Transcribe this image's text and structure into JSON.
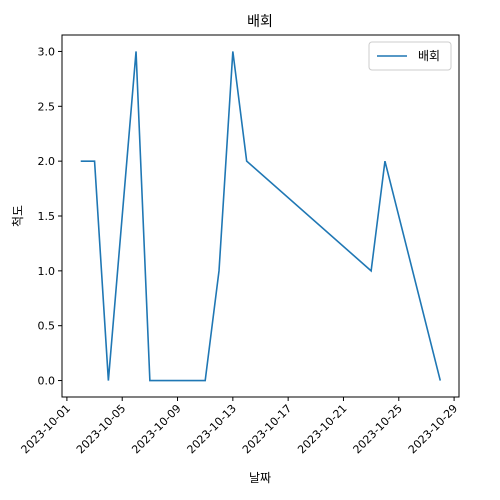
{
  "chart_data": {
    "type": "line",
    "title": "배회",
    "xlabel": "날짜",
    "ylabel": "척도",
    "x_ticks": [
      "2023-10-01",
      "2023-10-05",
      "2023-10-09",
      "2023-10-13",
      "2023-10-17",
      "2023-10-21",
      "2023-10-25",
      "2023-10-29"
    ],
    "y_ticks": [
      "0.0",
      "0.5",
      "1.0",
      "1.5",
      "2.0",
      "2.5",
      "3.0"
    ],
    "ylim": [
      -0.15,
      3.15
    ],
    "xlim": [
      "2023-09-30T15:30:00",
      "2023-10-29T08:30:00"
    ],
    "legend_position": "top-right",
    "colors": {
      "series": "#1f77b4",
      "axes": "#000000"
    },
    "series": [
      {
        "name": "배회",
        "x": [
          "2023-10-02",
          "2023-10-03",
          "2023-10-04",
          "2023-10-06",
          "2023-10-07",
          "2023-10-11",
          "2023-10-12",
          "2023-10-13",
          "2023-10-14",
          "2023-10-23",
          "2023-10-24",
          "2023-10-28"
        ],
        "values": [
          2,
          2,
          0,
          3,
          0,
          0,
          1,
          3,
          2,
          1,
          2,
          0
        ]
      }
    ]
  }
}
